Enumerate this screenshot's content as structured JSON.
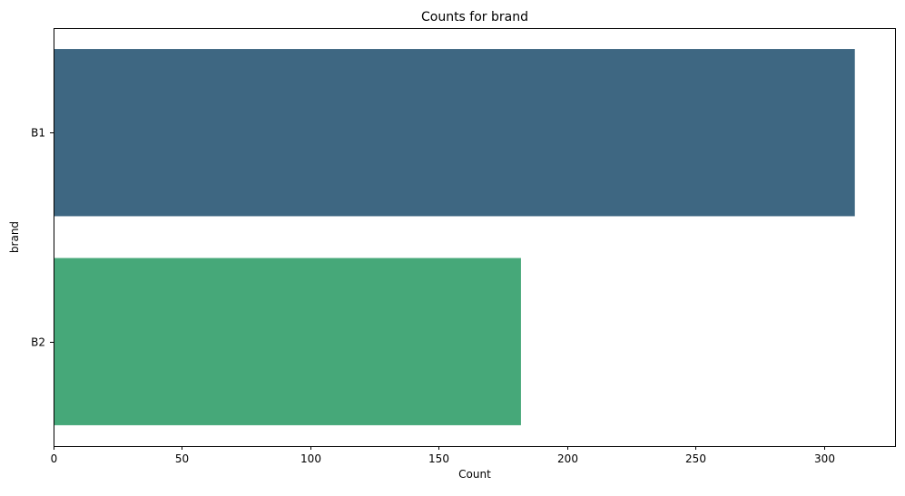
{
  "chart_data": {
    "type": "bar",
    "orientation": "horizontal",
    "title": "Counts for brand",
    "xlabel": "Count",
    "ylabel": "brand",
    "categories": [
      "B1",
      "B2"
    ],
    "values": [
      312,
      182
    ],
    "colors": [
      "#3e6782",
      "#46a879"
    ],
    "xlim": [
      0,
      328
    ],
    "xticks": [
      0,
      50,
      100,
      150,
      200,
      250,
      300
    ],
    "grid": false,
    "legend": "none"
  }
}
